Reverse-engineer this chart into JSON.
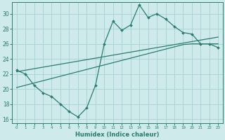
{
  "x": [
    0,
    1,
    2,
    3,
    4,
    5,
    6,
    7,
    8,
    9,
    10,
    11,
    12,
    13,
    14,
    15,
    16,
    17,
    18,
    19,
    20,
    21,
    22,
    23
  ],
  "line1": [
    22.5,
    22.0,
    20.5,
    19.5,
    19.0,
    18.0,
    17.0,
    16.3,
    17.5,
    20.5,
    26.0,
    29.0,
    27.8,
    28.5,
    31.2,
    29.5,
    30.0,
    29.3,
    28.3,
    27.5,
    27.3,
    26.0,
    26.0,
    25.5
  ],
  "trend_upper": [
    22.3,
    22.5,
    22.7,
    22.9,
    23.1,
    23.3,
    23.5,
    23.7,
    23.9,
    24.1,
    24.3,
    24.5,
    24.7,
    24.9,
    25.1,
    25.3,
    25.5,
    25.7,
    25.9,
    26.1,
    26.3,
    26.5,
    26.7,
    26.9
  ],
  "trend_lower": [
    20.2,
    20.5,
    20.8,
    21.1,
    21.4,
    21.7,
    22.0,
    22.3,
    22.6,
    22.9,
    23.2,
    23.5,
    23.8,
    24.1,
    24.4,
    24.7,
    25.0,
    25.3,
    25.6,
    25.9,
    26.0,
    26.0,
    26.0,
    26.0
  ],
  "color": "#2a7d6e",
  "bg_color": "#ceeaeb",
  "grid_color": "#a8d5d8",
  "xlabel": "Humidex (Indice chaleur)",
  "ylim": [
    15.5,
    31.5
  ],
  "xlim": [
    -0.5,
    23.5
  ],
  "yticks": [
    16,
    18,
    20,
    22,
    24,
    26,
    28,
    30
  ],
  "xticks": [
    0,
    1,
    2,
    3,
    4,
    5,
    6,
    7,
    8,
    9,
    10,
    11,
    12,
    13,
    14,
    15,
    16,
    17,
    18,
    19,
    20,
    21,
    22,
    23
  ]
}
